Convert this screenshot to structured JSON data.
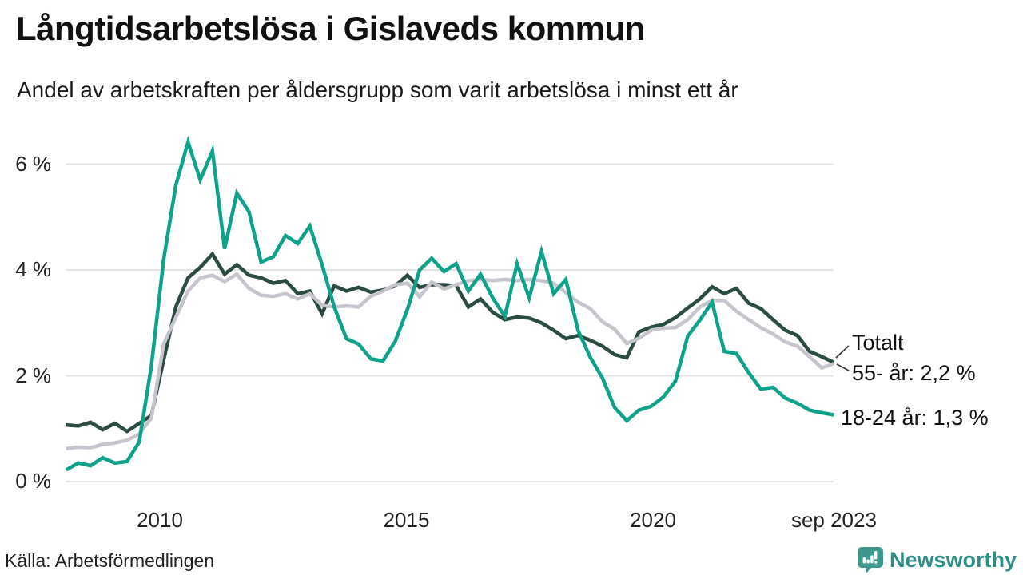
{
  "header": {
    "title": "Långtidsarbetslösa i Gislaveds kommun",
    "subtitle": "Andel av arbetskraften per åldersgrupp som varit arbetslösa i minst ett år"
  },
  "footer": {
    "source": "Källa: Arbetsförmedlingen",
    "brand": "Newsworthy",
    "brand_color": "#2F8F88",
    "logo_color": "#3D978D"
  },
  "chart_data": {
    "type": "line",
    "title": "Långtidsarbetslösa i Gislaveds kommun",
    "subtitle": "Andel av arbetskraften per åldersgrupp som varit arbetslösa i minst ett år",
    "unit": "%",
    "grid": true,
    "grid_color": "#e3e3e6",
    "legend_position": "end-of-line-labels-right",
    "x_range": {
      "start": 2008.1,
      "end": 2023.67
    },
    "x_axis": {
      "ticks": [
        {
          "label": "2010",
          "year": 2010
        },
        {
          "label": "2015",
          "year": 2015
        },
        {
          "label": "2020",
          "year": 2020
        },
        {
          "label": "sep 2023",
          "year": 2023.67
        }
      ]
    },
    "y_axis": {
      "ticks": [
        {
          "label": "0 %",
          "value": 0
        },
        {
          "label": "2 %",
          "value": 2
        },
        {
          "label": "4 %",
          "value": 4
        },
        {
          "label": "6 %",
          "value": 6
        }
      ],
      "min": 0,
      "max": 6.6
    },
    "series": [
      {
        "id": "totalt",
        "name": "Totalt",
        "end_label": "Totalt",
        "color": "#2B4C40",
        "values": [
          1.07,
          1.05,
          1.12,
          0.98,
          1.1,
          0.95,
          1.1,
          1.25,
          2.3,
          3.3,
          3.85,
          4.05,
          4.3,
          3.92,
          4.1,
          3.9,
          3.85,
          3.75,
          3.8,
          3.55,
          3.6,
          3.17,
          3.7,
          3.6,
          3.67,
          3.58,
          3.62,
          3.7,
          3.9,
          3.67,
          3.72,
          3.72,
          3.7,
          3.3,
          3.45,
          3.2,
          3.06,
          3.11,
          3.09,
          3.0,
          2.86,
          2.7,
          2.76,
          2.67,
          2.56,
          2.4,
          2.34,
          2.83,
          2.92,
          2.97,
          3.1,
          3.28,
          3.45,
          3.68,
          3.55,
          3.65,
          3.37,
          3.27,
          3.06,
          2.86,
          2.76,
          2.46,
          2.36,
          2.25
        ]
      },
      {
        "id": "55-ar",
        "name": "55- år",
        "end_label": "55- år: 2,2 %",
        "latest_value_label": "2,2 %",
        "color": "#C6C5CD",
        "values": [
          0.62,
          0.65,
          0.64,
          0.7,
          0.73,
          0.78,
          0.9,
          1.2,
          2.6,
          3.1,
          3.6,
          3.85,
          3.9,
          3.78,
          3.92,
          3.65,
          3.52,
          3.5,
          3.55,
          3.45,
          3.55,
          3.33,
          3.3,
          3.32,
          3.3,
          3.5,
          3.6,
          3.72,
          3.75,
          3.49,
          3.77,
          3.64,
          3.72,
          3.8,
          3.82,
          3.8,
          3.82,
          3.8,
          3.82,
          3.8,
          3.75,
          3.57,
          3.39,
          3.27,
          3.02,
          2.88,
          2.61,
          2.71,
          2.86,
          2.9,
          2.91,
          3.06,
          3.3,
          3.42,
          3.42,
          3.22,
          3.06,
          2.91,
          2.79,
          2.64,
          2.56,
          2.36,
          2.15,
          2.23
        ]
      },
      {
        "id": "18-24-ar",
        "name": "18-24 år",
        "end_label": "18-24 år: 1,3 %",
        "latest_value_label": "1,3 %",
        "color": "#0FA28B",
        "values": [
          0.22,
          0.35,
          0.3,
          0.45,
          0.35,
          0.38,
          0.75,
          2.2,
          4.2,
          5.6,
          6.42,
          5.7,
          6.25,
          4.4,
          5.45,
          5.1,
          4.15,
          4.25,
          4.65,
          4.5,
          4.83,
          4.1,
          3.3,
          2.7,
          2.6,
          2.32,
          2.28,
          2.65,
          3.25,
          4.0,
          4.22,
          3.97,
          4.12,
          3.6,
          3.92,
          3.47,
          3.12,
          4.12,
          3.47,
          4.35,
          3.55,
          3.82,
          2.86,
          2.35,
          1.96,
          1.4,
          1.15,
          1.35,
          1.42,
          1.6,
          1.9,
          2.75,
          3.05,
          3.39,
          2.46,
          2.42,
          2.06,
          1.75,
          1.78,
          1.58,
          1.48,
          1.35,
          1.3,
          1.26
        ]
      }
    ]
  }
}
